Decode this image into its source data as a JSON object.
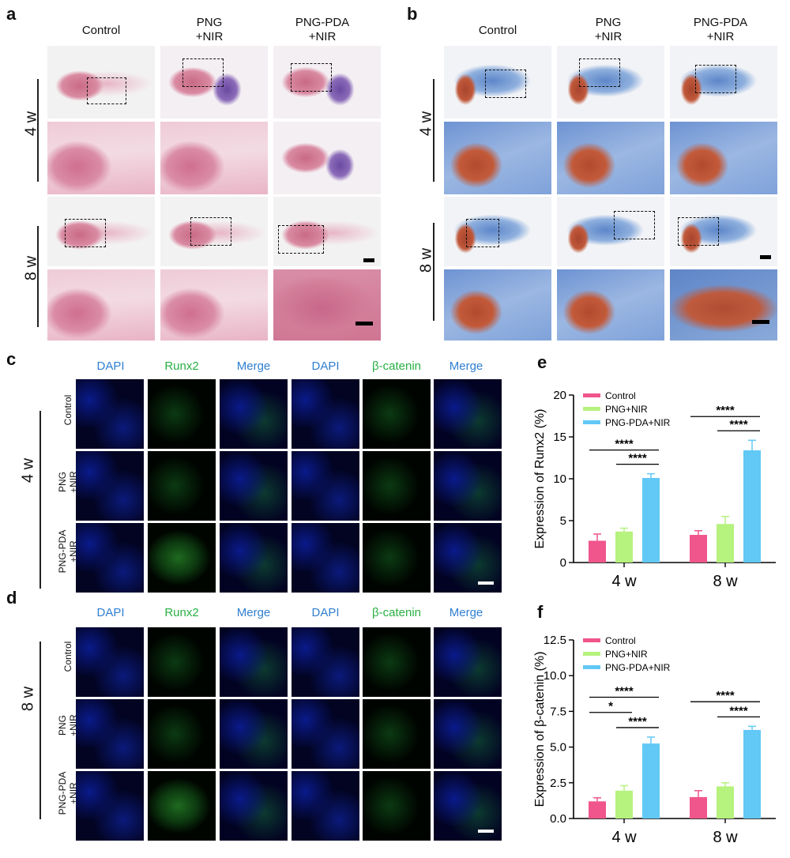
{
  "panels": {
    "a": "a",
    "b": "b",
    "c": "c",
    "d": "d",
    "e": "e",
    "f": "f"
  },
  "histology": {
    "col1": "Control",
    "col2_l1": "PNG",
    "col2_l2": "+NIR",
    "col3_l1": "PNG-PDA",
    "col3_l2": "+NIR",
    "row1": "4 w",
    "row2": "8 w"
  },
  "if": {
    "cols": [
      "DAPI",
      "Runx2",
      "Merge",
      "DAPI",
      "β-catenin",
      "Merge"
    ],
    "row_control": "Control",
    "row_png_l1": "PNG",
    "row_png_l2": "+NIR",
    "row_pda_l1": "PNG-PDA",
    "row_pda_l2": "+NIR",
    "time_c": "4 w",
    "time_d": "8 w"
  },
  "colors": {
    "control": "#f0558c",
    "png": "#b6f27e",
    "pda": "#62c8f5"
  },
  "chart_data": [
    {
      "type": "bar",
      "categories": [
        "4 w",
        "8 w"
      ],
      "ylabel": "Expression of Runx2 (%)",
      "ylim": [
        0,
        20
      ],
      "yticks": [
        0,
        5,
        10,
        15,
        20
      ],
      "series": [
        {
          "name": "Control",
          "values": [
            2.6,
            3.3
          ],
          "errors": [
            0.8,
            0.5
          ]
        },
        {
          "name": "PNG+NIR",
          "values": [
            3.7,
            4.6
          ],
          "errors": [
            0.4,
            0.9
          ]
        },
        {
          "name": "PNG-PDA+NIR",
          "values": [
            10.1,
            13.4
          ],
          "errors": [
            0.5,
            1.2
          ]
        }
      ],
      "legend_position": "top-left",
      "significance": [
        {
          "group": 0,
          "from": 0,
          "to": 2,
          "label": "****",
          "level": 1
        },
        {
          "group": 0,
          "from": 1,
          "to": 2,
          "label": "****",
          "level": 0
        },
        {
          "group": 1,
          "from": 0,
          "to": 2,
          "label": "****",
          "level": 1
        },
        {
          "group": 1,
          "from": 1,
          "to": 2,
          "label": "****",
          "level": 0
        }
      ]
    },
    {
      "type": "bar",
      "categories": [
        "4 w",
        "8 w"
      ],
      "ylabel": "Expression of β-catenin (%)",
      "ylim": [
        0,
        12.5
      ],
      "yticks": [
        0.0,
        2.5,
        5.0,
        7.5,
        10.0,
        12.5
      ],
      "series": [
        {
          "name": "Control",
          "values": [
            1.2,
            1.5
          ],
          "errors": [
            0.25,
            0.45
          ]
        },
        {
          "name": "PNG+NIR",
          "values": [
            1.95,
            2.25
          ],
          "errors": [
            0.35,
            0.25
          ]
        },
        {
          "name": "PNG-PDA+NIR",
          "values": [
            5.25,
            6.2
          ],
          "errors": [
            0.45,
            0.25
          ]
        }
      ],
      "legend_position": "top-left",
      "significance": [
        {
          "group": 0,
          "from": 0,
          "to": 2,
          "label": "****",
          "level": 2
        },
        {
          "group": 0,
          "from": 0,
          "to": 1,
          "label": "*",
          "level": 1
        },
        {
          "group": 0,
          "from": 1,
          "to": 2,
          "label": "****",
          "level": 0
        },
        {
          "group": 1,
          "from": 0,
          "to": 2,
          "label": "****",
          "level": 1
        },
        {
          "group": 1,
          "from": 1,
          "to": 2,
          "label": "****",
          "level": 0
        }
      ]
    }
  ]
}
